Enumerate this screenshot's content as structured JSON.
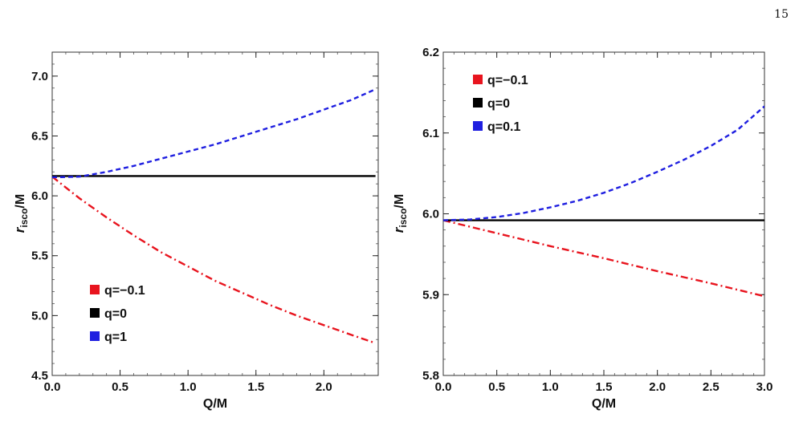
{
  "page": {
    "number": "15"
  },
  "chart_data": [
    {
      "type": "line",
      "xlabel": "Q/M",
      "ylabel": "r_isco/M",
      "ylabel_main": "r",
      "ylabel_sub": "isco",
      "ylabel_tail": "/M",
      "xlim": [
        0,
        2.4
      ],
      "ylim": [
        4.5,
        7.2
      ],
      "xticks": [
        0.0,
        0.5,
        1.0,
        1.5,
        2.0
      ],
      "xtick_labels": [
        "0.0",
        "0.5",
        "1.0",
        "1.5",
        "2.0"
      ],
      "yticks": [
        4.5,
        5.0,
        5.5,
        6.0,
        6.5,
        7.0
      ],
      "ytick_labels": [
        "4.5",
        "5.0",
        "5.5",
        "6.0",
        "6.5",
        "7.0"
      ],
      "legend_position": "bottom-left",
      "series": [
        {
          "name": "q=−0.1",
          "color": "#e8141e",
          "style": "dashdot",
          "x": [
            0,
            0.2,
            0.4,
            0.6,
            0.8,
            1.0,
            1.2,
            1.4,
            1.6,
            1.8,
            2.0,
            2.2,
            2.38
          ],
          "y": [
            6.16,
            5.98,
            5.82,
            5.67,
            5.53,
            5.41,
            5.29,
            5.19,
            5.09,
            5.0,
            4.92,
            4.84,
            4.77
          ]
        },
        {
          "name": "q=0",
          "color": "#000000",
          "style": "solid",
          "x": [
            0,
            2.38
          ],
          "y": [
            6.165,
            6.165
          ]
        },
        {
          "name": "q=1",
          "color": "#1f1fe0",
          "style": "dashed",
          "x": [
            0,
            0.2,
            0.4,
            0.6,
            0.8,
            1.0,
            1.2,
            1.4,
            1.6,
            1.8,
            2.0,
            2.2,
            2.38
          ],
          "y": [
            6.155,
            6.16,
            6.2,
            6.25,
            6.31,
            6.37,
            6.43,
            6.5,
            6.57,
            6.64,
            6.72,
            6.8,
            6.89
          ]
        }
      ]
    },
    {
      "type": "line",
      "xlabel": "Q/M",
      "ylabel": "r_isco/M",
      "ylabel_main": "r",
      "ylabel_sub": "isco",
      "ylabel_tail": "/M",
      "xlim": [
        0,
        3.0
      ],
      "ylim": [
        5.8,
        6.2
      ],
      "xticks": [
        0.0,
        0.5,
        1.0,
        1.5,
        2.0,
        2.5,
        3.0
      ],
      "xtick_labels": [
        "0.0",
        "0.5",
        "1.0",
        "1.5",
        "2.0",
        "2.5",
        "3.0"
      ],
      "yticks": [
        5.8,
        5.9,
        6.0,
        6.1,
        6.2
      ],
      "ytick_labels": [
        "5.8",
        "5.9",
        "6.0",
        "6.1",
        "6.2"
      ],
      "legend_position": "top-left",
      "series": [
        {
          "name": "q=−0.1",
          "color": "#e8141e",
          "style": "dashdot",
          "x": [
            0,
            0.5,
            1.0,
            1.5,
            2.0,
            2.5,
            3.0
          ],
          "y": [
            5.992,
            5.976,
            5.96,
            5.945,
            5.929,
            5.914,
            5.898
          ]
        },
        {
          "name": "q=0",
          "color": "#000000",
          "style": "solid",
          "x": [
            0,
            3.0
          ],
          "y": [
            5.992,
            5.992
          ]
        },
        {
          "name": "q=0.1",
          "color": "#1f1fe0",
          "style": "dashed",
          "x": [
            0,
            0.25,
            0.5,
            0.75,
            1.0,
            1.25,
            1.5,
            1.75,
            2.0,
            2.25,
            2.5,
            2.75,
            3.0
          ],
          "y": [
            5.992,
            5.993,
            5.996,
            6.001,
            6.008,
            6.016,
            6.026,
            6.038,
            6.052,
            6.067,
            6.084,
            6.104,
            6.133
          ]
        }
      ]
    }
  ]
}
